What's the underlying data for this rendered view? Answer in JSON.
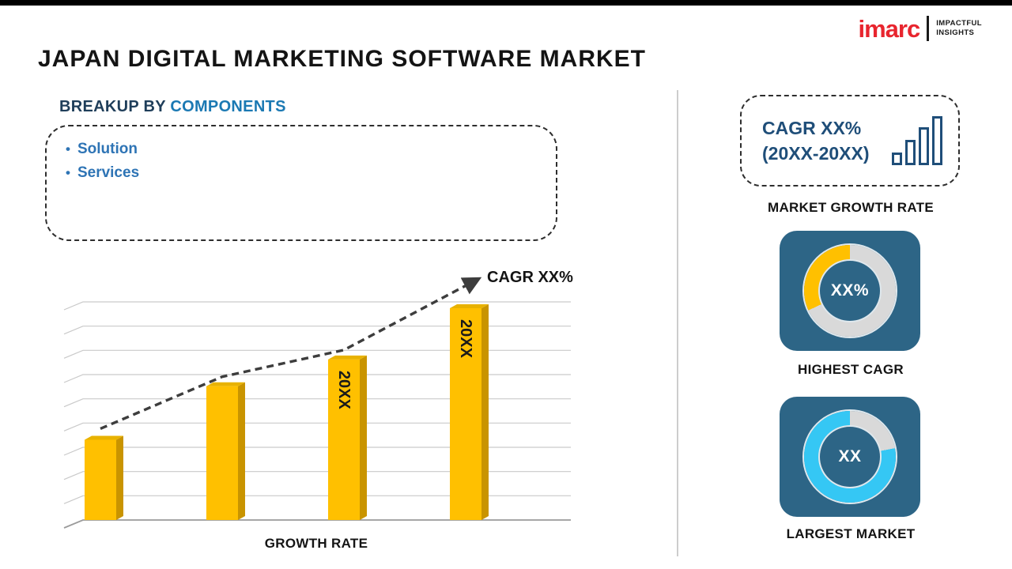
{
  "title": "JAPAN DIGITAL MARKETING SOFTWARE MARKET",
  "logo": {
    "brand": "imarc",
    "tagline_line1": "IMPACTFUL",
    "tagline_line2": "INSIGHTS"
  },
  "breakup": {
    "prefix": "BREAKUP BY",
    "highlight": "COMPONENTS",
    "items": [
      "Solution",
      "Services"
    ]
  },
  "colors": {
    "bar": "#FFC000",
    "bar_side": "#C99400",
    "bar_top": "#E8B200",
    "trend": "#3d3d3d",
    "grid": "#c9c9c9",
    "axis": "#9b9b9b",
    "navy_card": "#2D6586",
    "donut_track": "#D9D9D9",
    "brand_red": "#E8252E",
    "heading_navy": "#1F4E79",
    "bullet_blue": "#2E74B5"
  },
  "chart_data": {
    "type": "bar",
    "title": "",
    "bars": [
      {
        "label": "",
        "value": 36
      },
      {
        "label": "",
        "value": 60
      },
      {
        "label": "20XX",
        "value": 72
      },
      {
        "label": "20XX",
        "value": 95
      }
    ],
    "xlabel": "GROWTH RATE",
    "ylim": [
      0,
      100
    ],
    "grid": "horizontal-3d-perspective",
    "gridlines": 10,
    "legend": "none",
    "trend_label": "CAGR XX%",
    "trend_style": "dashed-arrow-rising"
  },
  "sidebar": {
    "growth_card": {
      "line1": "CAGR XX%",
      "line2": "(20XX-20XX)",
      "caption": "MARKET GROWTH RATE"
    },
    "highest_cagr": {
      "value": "XX%",
      "caption": "HIGHEST CAGR",
      "accent": "#FFC000",
      "track": "#D9D9D9",
      "accent_from": 68,
      "accent_to": 100
    },
    "largest_market": {
      "value": "XX",
      "caption": "LARGEST MARKET",
      "accent": "#35C7F4",
      "track": "#D9D9D9",
      "accent_from": 22,
      "accent_to": 100
    }
  }
}
